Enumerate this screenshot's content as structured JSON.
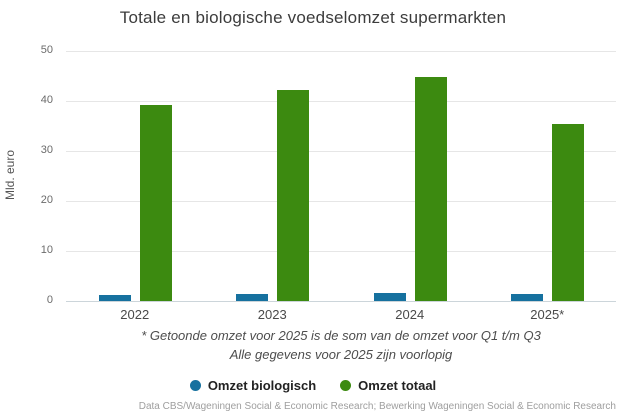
{
  "title": "Totale en biologische voedselomzet supermarkten",
  "chart_data": {
    "type": "bar",
    "categories": [
      "2022",
      "2023",
      "2024",
      "2025*"
    ],
    "series": [
      {
        "name": "Omzet biologisch",
        "color": "#16719f",
        "values": [
          1.3,
          1.5,
          1.7,
          1.5
        ]
      },
      {
        "name": "Omzet totaal",
        "color": "#3c8a10",
        "values": [
          39.3,
          42.2,
          44.9,
          35.4
        ]
      }
    ],
    "xlabel": "",
    "ylabel": "Mld. euro",
    "ylim": [
      0,
      50
    ],
    "yticks": [
      0,
      10,
      20,
      30,
      40,
      50
    ],
    "grid": true,
    "legend_position": "bottom"
  },
  "footnotes": [
    "* Getoonde omzet voor 2025 is de som van de omzet voor Q1 t/m Q3",
    "Alle gegevens voor 2025 zijn voorlopig"
  ],
  "source": "Data CBS/Wageningen Social & Economic Research; Bewerking Wageningen Social & Economic Research",
  "colors": {
    "biologisch": "#16719f",
    "totaal": "#3c8a10",
    "gridline": "#e6e6e6",
    "baseline": "#ccd5da",
    "title_text": "#3c3c3c",
    "axis_text": "#6b6b6b"
  }
}
